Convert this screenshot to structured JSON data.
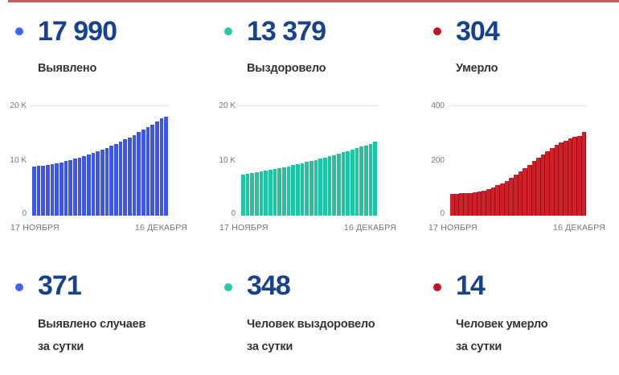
{
  "topline_color": "#c4605a",
  "number_color": "#17428f",
  "cards": [
    {
      "total": "17 990",
      "label": "Выявлено",
      "daily": "371",
      "daily_label": [
        "Выявлено случаев",
        "за сутки"
      ],
      "dot_color": "#4164e8"
    },
    {
      "total": "13 379",
      "label": "Выздоровело",
      "daily": "348",
      "daily_label": [
        "Человек выздоровело",
        "за сутки"
      ],
      "dot_color": "#25c9a2"
    },
    {
      "total": "304",
      "label": "Умерло",
      "daily": "14",
      "daily_label": [
        "Человек умерло",
        "за сутки"
      ],
      "dot_color": "#bf1724"
    }
  ],
  "chart_data": [
    {
      "type": "bar",
      "title": "Выявлено",
      "color": "#3d55e8",
      "gap_style": "light",
      "ylim": [
        0,
        20000
      ],
      "yticks": [
        "20 K",
        "10 K",
        "0"
      ],
      "x_start_label": "17 НОЯБРЯ",
      "x_end_label": "16 ДЕКАБРЯ",
      "legend_position": "none",
      "grid": "top-tick-only",
      "values": [
        8900,
        8990,
        9096,
        9219,
        9358,
        9513,
        9685,
        9873,
        10078,
        10299,
        10536,
        10790,
        11060,
        11347,
        11650,
        11969,
        12305,
        12657,
        13026,
        13411,
        13812,
        14230,
        14664,
        15115,
        15582,
        16065,
        16565,
        17081,
        17619,
        17990
      ]
    },
    {
      "type": "bar",
      "title": "Выздоровело",
      "color": "#1fc4a0",
      "gap_style": "light",
      "ylim": [
        0,
        20000
      ],
      "yticks": [
        "20 K",
        "10 K",
        "0"
      ],
      "x_start_label": "17 НОЯБРЯ",
      "x_end_label": "16 ДЕКАБРЯ",
      "legend_position": "none",
      "grid": "top-tick-only",
      "values": [
        7430,
        7560,
        7695,
        7835,
        7980,
        8131,
        8287,
        8448,
        8614,
        8785,
        8962,
        9144,
        9331,
        9523,
        9720,
        9923,
        10131,
        10344,
        10562,
        10785,
        11014,
        11248,
        11487,
        11731,
        11980,
        12235,
        12495,
        12760,
        13031,
        13379
      ]
    },
    {
      "type": "bar",
      "title": "Умерло",
      "color": "#ce2028",
      "gap_style": "dark",
      "ylim": [
        0,
        400
      ],
      "yticks": [
        "400",
        "200",
        "0"
      ],
      "x_start_label": "17 НОЯБРЯ",
      "x_end_label": "16 ДЕКАБРЯ",
      "legend_position": "none",
      "grid": "top-tick-only",
      "values": [
        80,
        80,
        81,
        82,
        83,
        85,
        88,
        92,
        97,
        103,
        110,
        118,
        127,
        137,
        148,
        160,
        172,
        185,
        198,
        211,
        223,
        235,
        246,
        256,
        265,
        273,
        280,
        285,
        290,
        304
      ]
    }
  ]
}
